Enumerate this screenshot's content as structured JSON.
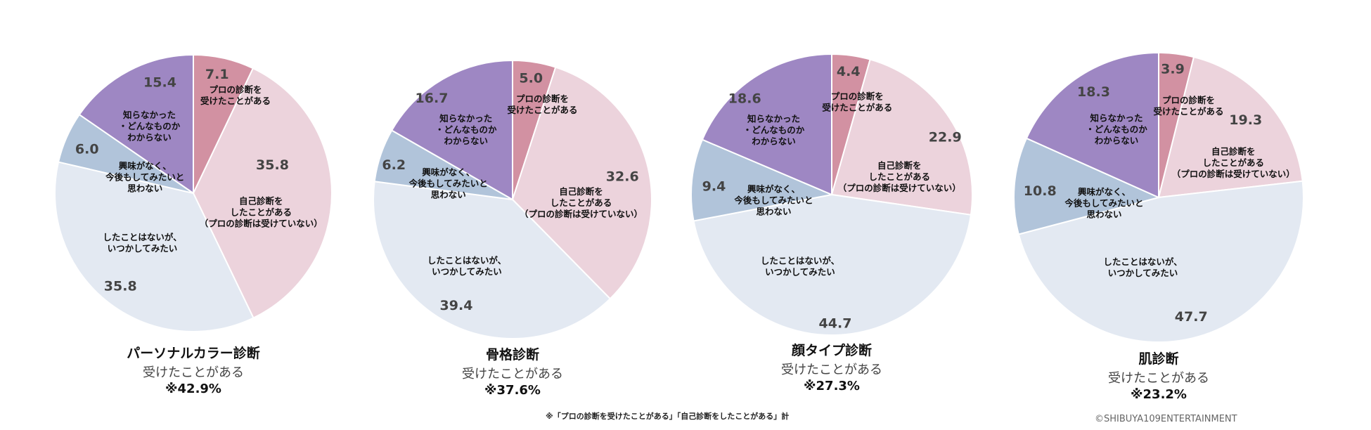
{
  "chart_data": [
    {
      "type": "pie",
      "title": "パーソナルカラー診断",
      "subtitle": "受けたことがある",
      "total_label": "※42.9%",
      "categories": [
        "プロの診断を\n受けたことがある",
        "自己診断を\nしたことがある\n（プロの診断は受けていない）",
        "したことはないが、\nいつかしてみたい",
        "興味がなく、\n今後もしてみたいと\n思わない",
        "知らなかった\n・どんなものか\nわからない"
      ],
      "values": [
        7.1,
        35.8,
        35.8,
        6.0,
        15.4
      ]
    },
    {
      "type": "pie",
      "title": "骨格診断",
      "subtitle": "受けたことがある",
      "total_label": "※37.6%",
      "categories": [
        "プロの診断を\n受けたことがある",
        "自己診断を\nしたことがある\n（プロの診断は受けていない）",
        "したことはないが、\nいつかしてみたい",
        "興味がなく、\n今後もしてみたいと\n思わない",
        "知らなかった\n・どんなものか\nわからない"
      ],
      "values": [
        5.0,
        32.6,
        39.4,
        6.2,
        16.7
      ]
    },
    {
      "type": "pie",
      "title": "顔タイプ診断",
      "subtitle": "受けたことがある",
      "total_label": "※27.3%",
      "categories": [
        "プロの診断を\n受けたことがある",
        "自己診断を\nしたことがある\n（プロの診断は受けていない）",
        "したことはないが、\nいつかしてみたい",
        "興味がなく、\n今後もしてみたいと\n思わない",
        "知らなかった\n・どんなものか\nわからない"
      ],
      "values": [
        4.4,
        22.9,
        44.7,
        9.4,
        18.6
      ]
    },
    {
      "type": "pie",
      "title": "肌診断",
      "subtitle": "受けたことがある",
      "total_label": "※23.2%",
      "categories": [
        "プロの診断を\n受けたことがある",
        "自己診断を\nしたことがある\n（プロの診断は受けていない）",
        "したことはないが、\nいつかしてみたい",
        "興味がなく、\n今後もしてみたいと\n思わない",
        "知らなかった\n・どんなものか\nわからない"
      ],
      "values": [
        3.9,
        19.3,
        47.7,
        10.8,
        18.3
      ]
    }
  ],
  "colors": [
    "#d291a2",
    "#ecd3dc",
    "#e3e9f2",
    "#b1c4da",
    "#9e87c3"
  ],
  "footnote": "※「プロの診断を受けたことがある」「自己診断をしたことがある」計",
  "copyright": "©SHIBUYA109ENTERTAINMENT"
}
